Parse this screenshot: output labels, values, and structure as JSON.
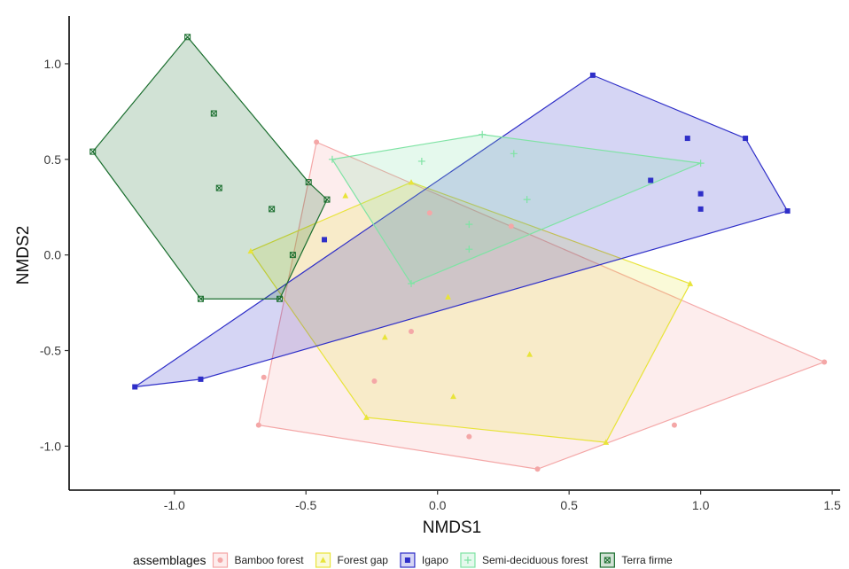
{
  "chart_data": {
    "type": "scatter",
    "xlabel": "NMDS1",
    "ylabel": "NMDS2",
    "xlim": [
      -1.4,
      1.53
    ],
    "ylim": [
      -1.23,
      1.25
    ],
    "x_ticks": [
      {
        "value": -1.0,
        "label": "-1.0"
      },
      {
        "value": -0.5,
        "label": "-0.5"
      },
      {
        "value": 0.0,
        "label": "0.0"
      },
      {
        "value": 0.5,
        "label": "0.5"
      },
      {
        "value": 1.0,
        "label": "1.0"
      },
      {
        "value": 1.5,
        "label": "1.5"
      }
    ],
    "y_ticks": [
      {
        "value": -1.0,
        "label": "-1.0"
      },
      {
        "value": -0.5,
        "label": "-0.5"
      },
      {
        "value": 0.0,
        "label": "0.0"
      },
      {
        "value": 0.5,
        "label": "0.5"
      },
      {
        "value": 1.0,
        "label": "1.0"
      }
    ],
    "grid": false,
    "legend": {
      "title": "assemblages",
      "position": "bottom"
    },
    "series": [
      {
        "name": "Bamboo forest",
        "color": "#f4a7a7",
        "marker": "circle",
        "points": [
          [
            -0.46,
            0.59
          ],
          [
            -0.66,
            -0.64
          ],
          [
            -0.03,
            0.22
          ],
          [
            0.28,
            0.15
          ],
          [
            -0.1,
            -0.4
          ],
          [
            -0.24,
            -0.66
          ],
          [
            0.12,
            -0.95
          ],
          [
            0.9,
            -0.89
          ],
          [
            1.47,
            -0.56
          ],
          [
            0.38,
            -1.12
          ],
          [
            -0.68,
            -0.89
          ]
        ],
        "hull": [
          [
            -0.46,
            0.59
          ],
          [
            1.47,
            -0.56
          ],
          [
            0.38,
            -1.12
          ],
          [
            -0.68,
            -0.89
          ]
        ]
      },
      {
        "name": "Forest gap",
        "color": "#e8e43a",
        "marker": "triangle",
        "points": [
          [
            -0.71,
            0.02
          ],
          [
            -0.35,
            0.31
          ],
          [
            -0.1,
            0.38
          ],
          [
            0.96,
            -0.15
          ],
          [
            0.04,
            -0.22
          ],
          [
            -0.2,
            -0.43
          ],
          [
            0.35,
            -0.52
          ],
          [
            0.06,
            -0.74
          ],
          [
            0.64,
            -0.98
          ],
          [
            -0.27,
            -0.85
          ]
        ],
        "hull": [
          [
            -0.71,
            0.02
          ],
          [
            -0.1,
            0.38
          ],
          [
            0.96,
            -0.15
          ],
          [
            0.64,
            -0.98
          ],
          [
            -0.27,
            -0.85
          ]
        ]
      },
      {
        "name": "Igapo",
        "color": "#2f2fc8",
        "marker": "square",
        "points": [
          [
            0.59,
            0.94
          ],
          [
            1.17,
            0.61
          ],
          [
            0.95,
            0.61
          ],
          [
            0.81,
            0.39
          ],
          [
            1.0,
            0.32
          ],
          [
            1.0,
            0.24
          ],
          [
            1.33,
            0.23
          ],
          [
            -0.43,
            0.08
          ],
          [
            -0.9,
            -0.65
          ],
          [
            -1.15,
            -0.69
          ]
        ],
        "hull": [
          [
            0.59,
            0.94
          ],
          [
            1.17,
            0.61
          ],
          [
            1.33,
            0.23
          ],
          [
            -0.9,
            -0.65
          ],
          [
            -1.15,
            -0.69
          ]
        ]
      },
      {
        "name": "Semi-deciduous forest",
        "color": "#7fe3a4",
        "marker": "plus",
        "points": [
          [
            -0.4,
            0.5
          ],
          [
            -0.06,
            0.49
          ],
          [
            0.17,
            0.63
          ],
          [
            0.29,
            0.53
          ],
          [
            1.0,
            0.48
          ],
          [
            0.34,
            0.29
          ],
          [
            0.12,
            0.16
          ],
          [
            0.12,
            0.03
          ],
          [
            -0.1,
            -0.15
          ]
        ],
        "hull": [
          [
            -0.4,
            0.5
          ],
          [
            0.17,
            0.63
          ],
          [
            1.0,
            0.48
          ],
          [
            -0.1,
            -0.15
          ]
        ]
      },
      {
        "name": "Terra firme",
        "color": "#1a6e2e",
        "marker": "boxx",
        "points": [
          [
            -0.95,
            1.14
          ],
          [
            -0.85,
            0.74
          ],
          [
            -1.31,
            0.54
          ],
          [
            -0.83,
            0.35
          ],
          [
            -0.49,
            0.38
          ],
          [
            -0.42,
            0.29
          ],
          [
            -0.63,
            0.24
          ],
          [
            -0.55,
            0.0
          ],
          [
            -0.6,
            -0.23
          ],
          [
            -0.9,
            -0.23
          ]
        ],
        "hull": [
          [
            -0.95,
            1.14
          ],
          [
            -1.31,
            0.54
          ],
          [
            -0.9,
            -0.23
          ],
          [
            -0.6,
            -0.23
          ],
          [
            -0.42,
            0.29
          ],
          [
            -0.49,
            0.38
          ]
        ]
      }
    ]
  }
}
